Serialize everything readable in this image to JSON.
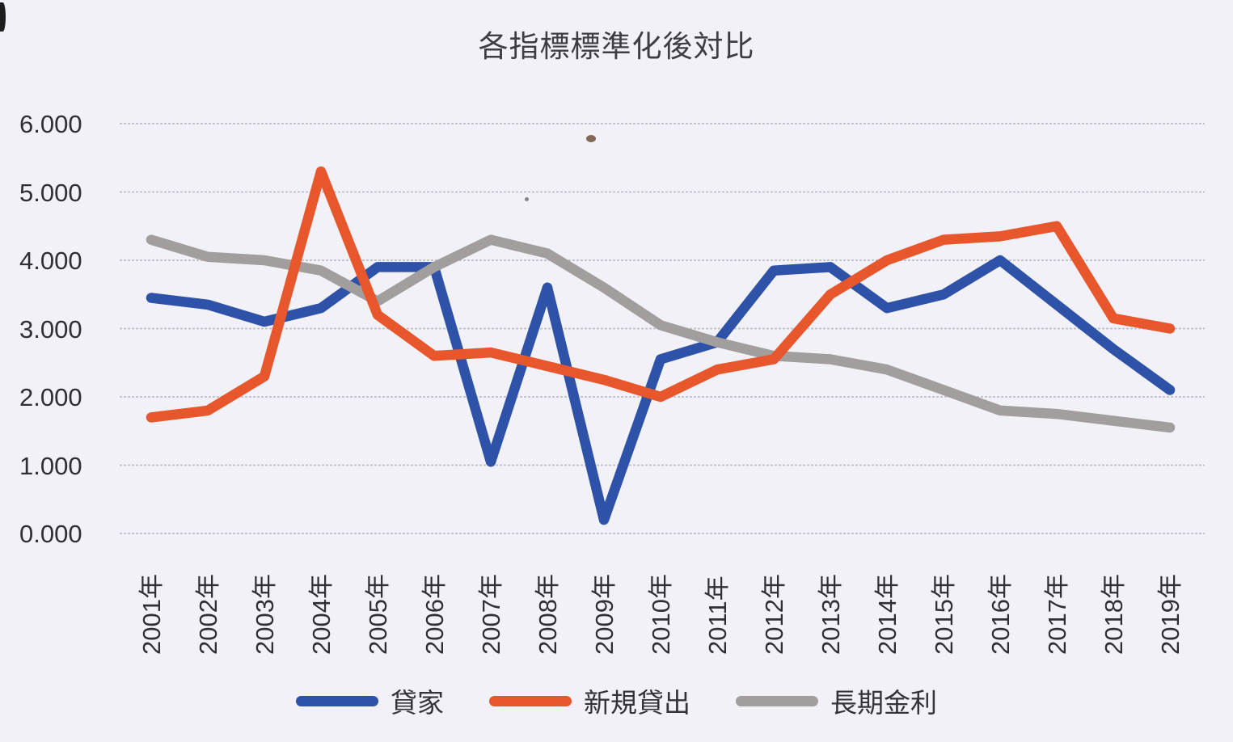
{
  "page": {
    "background": "#f2f1f7"
  },
  "colors": {
    "gridline": "#bcbbc8",
    "axis_text": "#2f2f34",
    "title_text": "#3d3d44"
  },
  "chart_data": {
    "type": "line",
    "title": "各指標標準化後対比",
    "categories": [
      "2001年",
      "2002年",
      "2003年",
      "2004年",
      "2005年",
      "2006年",
      "2007年",
      "2008年",
      "2009年",
      "2010年",
      "2011年",
      "2012年",
      "2013年",
      "2014年",
      "2015年",
      "2016年",
      "2017年",
      "2018年",
      "2019年"
    ],
    "series": [
      {
        "name": "貸家",
        "color": "#2e52a8",
        "values": [
          3.45,
          3.35,
          3.1,
          3.3,
          3.9,
          3.9,
          1.05,
          3.6,
          0.2,
          2.55,
          2.8,
          3.85,
          3.9,
          3.3,
          3.5,
          4.0,
          3.35,
          2.7,
          2.1
        ]
      },
      {
        "name": "新規貸出",
        "color": "#e8562c",
        "values": [
          1.7,
          1.8,
          2.3,
          5.3,
          3.2,
          2.6,
          2.65,
          2.45,
          2.25,
          2.0,
          2.4,
          2.55,
          3.5,
          4.0,
          4.3,
          4.35,
          4.5,
          3.15,
          3.0
        ]
      },
      {
        "name": "長期金利",
        "color": "#a29e9e",
        "values": [
          4.3,
          4.05,
          4.0,
          3.85,
          3.4,
          3.9,
          4.3,
          4.1,
          3.6,
          3.05,
          2.8,
          2.6,
          2.55,
          2.4,
          2.1,
          1.8,
          1.75,
          1.65,
          1.55
        ]
      }
    ],
    "ylim": [
      0,
      6
    ],
    "y_tick_labels": [
      "6.000",
      "5.000",
      "4.000",
      "3.000",
      "2.000",
      "1.000",
      "0.000"
    ],
    "grid": true,
    "legend_position": "bottom",
    "x_tick_rotation": -90
  }
}
